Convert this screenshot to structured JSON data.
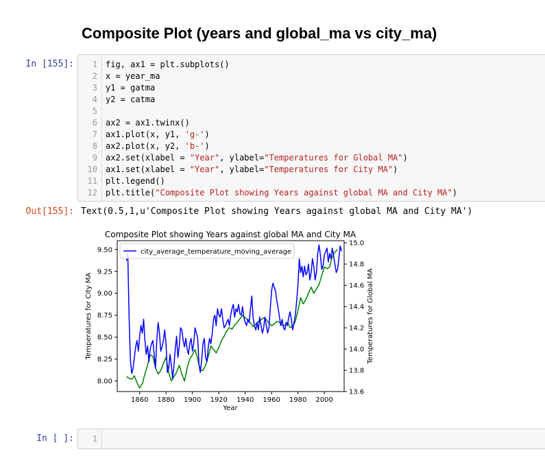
{
  "heading": "Composite Plot (years and global_ma vs city_ma)",
  "cells": {
    "in155_prompt": "In [155]:",
    "out155_prompt": "Out[155]:",
    "empty_prompt": "In [ ]:",
    "empty_line_no": "1",
    "output_text": "Text(0.5,1,u'Composite Plot showing Years against global MA and City MA')"
  },
  "code_lines": [
    {
      "n": "1",
      "parts": [
        [
          "",
          "fig, ax1 = plt.subplots()"
        ]
      ]
    },
    {
      "n": "2",
      "parts": [
        [
          "",
          "x = year_ma"
        ]
      ]
    },
    {
      "n": "3",
      "parts": [
        [
          "",
          "y1 = gatma"
        ]
      ]
    },
    {
      "n": "4",
      "parts": [
        [
          "",
          "y2 = catma"
        ]
      ]
    },
    {
      "n": "5",
      "parts": [
        [
          "",
          ""
        ]
      ]
    },
    {
      "n": "6",
      "parts": [
        [
          "",
          "ax2 = ax1.twinx()"
        ]
      ]
    },
    {
      "n": "7",
      "parts": [
        [
          "",
          "ax1.plot(x, y1, "
        ],
        [
          "s",
          "'g-'"
        ],
        [
          "",
          ")"
        ]
      ]
    },
    {
      "n": "8",
      "parts": [
        [
          "",
          "ax2.plot(x, y2, "
        ],
        [
          "s",
          "'b-'"
        ],
        [
          "",
          ")"
        ]
      ]
    },
    {
      "n": "9",
      "parts": [
        [
          "",
          "ax2.set(xlabel = "
        ],
        [
          "s",
          "\"Year\""
        ],
        [
          "",
          ", ylabel="
        ],
        [
          "s",
          "\"Temperatures for Global MA\""
        ],
        [
          "",
          ")"
        ]
      ]
    },
    {
      "n": "10",
      "parts": [
        [
          "",
          "ax1.set(xlabel = "
        ],
        [
          "s",
          "\"Year\""
        ],
        [
          "",
          ", ylabel="
        ],
        [
          "s",
          "\"Temperatures for City MA\""
        ],
        [
          "",
          ")"
        ]
      ]
    },
    {
      "n": "11",
      "parts": [
        [
          "",
          "plt.legend()"
        ]
      ]
    },
    {
      "n": "12",
      "parts": [
        [
          "",
          "plt.title("
        ],
        [
          "s",
          "\"Composite Plot showing Years against global MA and City MA\""
        ],
        [
          "",
          ")"
        ]
      ]
    }
  ],
  "chart_data": {
    "type": "line",
    "title": "Composite Plot showing Years against global MA and City MA",
    "xlabel": "Year",
    "ylabel_left": "Temperatures for City MA",
    "ylabel_right": "Temperatures for Global MA",
    "xlim": [
      1843,
      2015
    ],
    "ylim_left": [
      7.88,
      9.6
    ],
    "ylim_right": [
      13.6,
      15.02
    ],
    "x_ticks": [
      1860,
      1880,
      1900,
      1920,
      1940,
      1960,
      1980,
      2000
    ],
    "y_ticks_left": [
      8.0,
      8.25,
      8.5,
      8.75,
      9.0,
      9.25,
      9.5
    ],
    "y_ticks_left_labels": [
      "8.00",
      "8.25",
      "8.50",
      "8.75",
      "9.00",
      "9.25",
      "9.50"
    ],
    "y_ticks_right": [
      13.6,
      13.8,
      14.0,
      14.2,
      14.4,
      14.6,
      14.8,
      15.0
    ],
    "y_ticks_right_labels": [
      "13.6",
      "13.8",
      "14.0",
      "14.2",
      "14.4",
      "14.6",
      "14.8",
      "15.0"
    ],
    "legend": {
      "placement": "upper-left",
      "entries": [
        "city_average_temperature_moving_average"
      ]
    },
    "grid": false,
    "series": [
      {
        "axis": "left",
        "color": "#008000",
        "x": [
          1850,
          1852,
          1854,
          1856,
          1858,
          1860,
          1862,
          1864,
          1866,
          1868,
          1870,
          1872,
          1874,
          1876,
          1878,
          1880,
          1882,
          1884,
          1886,
          1888,
          1890,
          1892,
          1894,
          1896,
          1898,
          1900,
          1902,
          1904,
          1906,
          1908,
          1910,
          1912,
          1914,
          1916,
          1918,
          1920,
          1922,
          1924,
          1926,
          1928,
          1930,
          1932,
          1934,
          1936,
          1938,
          1940,
          1942,
          1944,
          1946,
          1948,
          1950,
          1952,
          1954,
          1956,
          1958,
          1960,
          1962,
          1964,
          1966,
          1968,
          1970,
          1972,
          1974,
          1976,
          1978,
          1980,
          1982,
          1984,
          1986,
          1988,
          1990,
          1992,
          1994,
          1996,
          1998,
          2000,
          2002,
          2004,
          2006,
          2008,
          2010
        ],
        "y": [
          8.05,
          8.03,
          8.02,
          8.06,
          7.98,
          7.92,
          7.97,
          8.08,
          8.18,
          8.3,
          8.28,
          8.15,
          8.08,
          8.12,
          8.2,
          8.27,
          8.1,
          8.0,
          8.05,
          8.1,
          8.18,
          8.08,
          8.0,
          8.15,
          8.25,
          8.3,
          8.36,
          8.25,
          8.12,
          8.12,
          8.18,
          8.28,
          8.4,
          8.36,
          8.32,
          8.38,
          8.46,
          8.51,
          8.57,
          8.61,
          8.59,
          8.64,
          8.67,
          8.71,
          8.75,
          8.72,
          8.7,
          8.66,
          8.62,
          8.65,
          8.68,
          8.7,
          8.72,
          8.7,
          8.66,
          8.63,
          8.65,
          8.68,
          8.67,
          8.64,
          8.63,
          8.67,
          8.61,
          8.62,
          8.68,
          8.8,
          8.95,
          8.88,
          8.93,
          9.0,
          9.07,
          9.0,
          9.05,
          9.1,
          9.2,
          9.3,
          9.28,
          9.3,
          9.42,
          9.47,
          9.5
        ]
      },
      {
        "axis": "right",
        "color": "#0000ff",
        "name": "city_average_temperature_moving_average",
        "x": [
          1850,
          1851,
          1852,
          1853,
          1854,
          1855,
          1856,
          1857,
          1858,
          1859,
          1860,
          1861,
          1862,
          1863,
          1864,
          1865,
          1866,
          1867,
          1868,
          1869,
          1870,
          1871,
          1872,
          1873,
          1874,
          1875,
          1876,
          1877,
          1878,
          1879,
          1880,
          1881,
          1882,
          1883,
          1884,
          1885,
          1886,
          1887,
          1888,
          1889,
          1890,
          1891,
          1892,
          1893,
          1894,
          1895,
          1896,
          1897,
          1898,
          1899,
          1900,
          1901,
          1902,
          1903,
          1904,
          1905,
          1906,
          1907,
          1908,
          1909,
          1910,
          1911,
          1912,
          1913,
          1914,
          1915,
          1916,
          1917,
          1918,
          1919,
          1920,
          1921,
          1922,
          1923,
          1924,
          1925,
          1926,
          1927,
          1928,
          1929,
          1930,
          1931,
          1932,
          1933,
          1934,
          1935,
          1936,
          1937,
          1938,
          1939,
          1940,
          1941,
          1942,
          1943,
          1944,
          1945,
          1946,
          1947,
          1948,
          1949,
          1950,
          1951,
          1952,
          1953,
          1954,
          1955,
          1956,
          1957,
          1958,
          1959,
          1960,
          1961,
          1962,
          1963,
          1964,
          1965,
          1966,
          1967,
          1968,
          1969,
          1970,
          1971,
          1972,
          1973,
          1974,
          1975,
          1976,
          1977,
          1978,
          1979,
          1980,
          1981,
          1982,
          1983,
          1984,
          1985,
          1986,
          1987,
          1988,
          1989,
          1990,
          1991,
          1992,
          1993,
          1994,
          1995,
          1996,
          1997,
          1998,
          1999,
          2000,
          2001,
          2002,
          2003,
          2004,
          2005,
          2006,
          2007,
          2008,
          2009,
          2010,
          2011,
          2012,
          2013
        ],
        "y": [
          14.83,
          14.9,
          14.3,
          13.9,
          13.77,
          13.82,
          13.92,
          14.02,
          14.08,
          13.98,
          14.12,
          14.22,
          14.15,
          14.28,
          14.08,
          13.95,
          14.03,
          13.88,
          14.0,
          14.05,
          14.08,
          13.95,
          13.82,
          14.08,
          14.25,
          14.15,
          13.98,
          14.02,
          14.08,
          14.18,
          14.05,
          13.78,
          13.82,
          13.95,
          13.85,
          13.72,
          13.85,
          14.0,
          14.12,
          13.92,
          14.02,
          14.2,
          14.18,
          14.08,
          14.02,
          14.1,
          14.0,
          13.95,
          14.05,
          14.1,
          13.98,
          14.05,
          14.2,
          14.15,
          14.1,
          13.85,
          13.78,
          13.9,
          14.05,
          14.1,
          13.92,
          13.88,
          14.02,
          14.1,
          14.05,
          14.15,
          14.28,
          14.32,
          14.22,
          14.38,
          14.32,
          14.3,
          14.38,
          14.28,
          14.2,
          14.22,
          14.25,
          14.28,
          14.22,
          14.32,
          14.38,
          14.42,
          14.3,
          14.38,
          14.35,
          14.42,
          14.33,
          14.32,
          14.4,
          14.3,
          14.25,
          14.22,
          14.28,
          14.25,
          14.38,
          14.5,
          14.3,
          14.22,
          14.18,
          14.25,
          14.18,
          14.3,
          14.22,
          14.15,
          14.2,
          14.3,
          14.22,
          14.15,
          14.2,
          14.38,
          14.55,
          14.62,
          14.58,
          14.55,
          14.45,
          14.38,
          14.3,
          14.22,
          14.28,
          14.2,
          14.18,
          14.25,
          14.22,
          14.3,
          14.35,
          14.28,
          14.18,
          14.25,
          14.32,
          14.45,
          14.6,
          14.85,
          14.72,
          14.78,
          14.68,
          14.78,
          14.7,
          14.72,
          14.8,
          14.65,
          14.72,
          14.85,
          14.78,
          14.65,
          14.72,
          14.9,
          14.98,
          14.88,
          14.75,
          14.78,
          14.88,
          14.92,
          14.95,
          14.82,
          14.9,
          14.85,
          14.95,
          14.88,
          14.8,
          14.72,
          14.75,
          14.85,
          14.97,
          14.92
        ]
      }
    ]
  }
}
